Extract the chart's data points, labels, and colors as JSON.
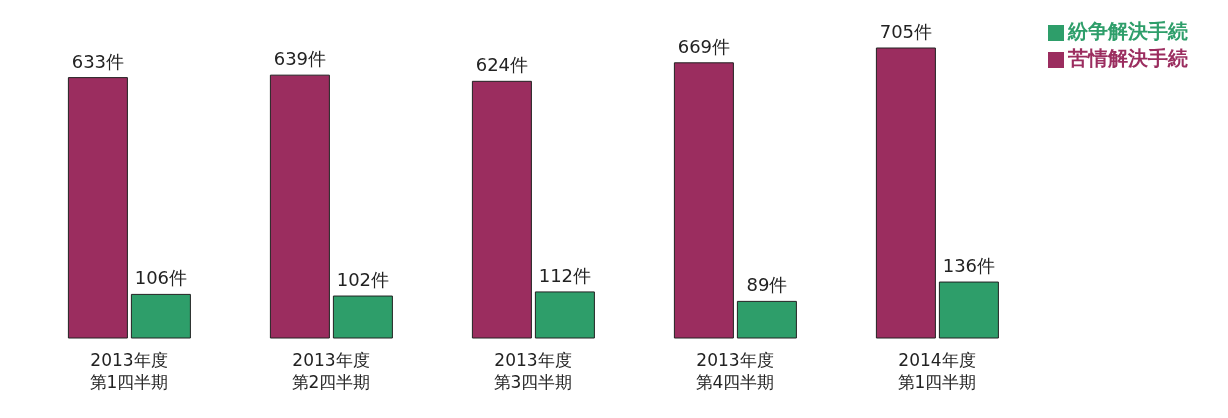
{
  "chart_data": {
    "type": "bar",
    "categories": [
      "2013年度第1四半期",
      "2013年度第2四半期",
      "2013年度第3四半期",
      "2013年度第4四半期",
      "2014年度第1四半期"
    ],
    "series": [
      {
        "name": "苦情解決手続",
        "color": "#9b2d5f",
        "values": [
          633,
          639,
          624,
          669,
          705
        ],
        "value_labels": [
          "633件",
          "639件",
          "624件",
          "669件",
          "705件"
        ]
      },
      {
        "name": "紛争解決手続",
        "color": "#2e9e6a",
        "values": [
          106,
          102,
          112,
          89,
          136
        ],
        "value_labels": [
          "106件",
          "102件",
          "112件",
          "89件",
          "136件"
        ]
      }
    ],
    "legend": "top right",
    "grid": false
  }
}
